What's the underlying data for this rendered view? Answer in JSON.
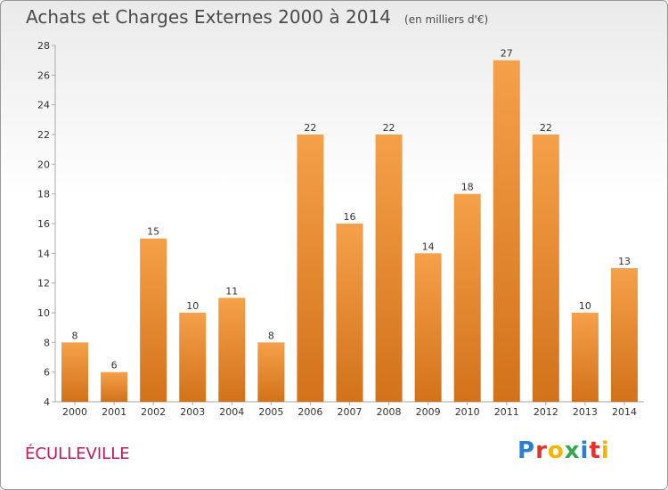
{
  "header": {
    "title": "Achats et Charges Externes 2000 à 2014",
    "subtitle": "(en milliers d'€)"
  },
  "footer": {
    "commune": "ÉCULLEVILLE",
    "logo_text": "Proxiti"
  },
  "colors": {
    "bar_top": "#f5a04a",
    "bar_bottom": "#d2721a",
    "title": "#4a4a4a",
    "commune": "#c2185b"
  },
  "chart_data": {
    "type": "bar",
    "categories": [
      "2000",
      "2001",
      "2002",
      "2003",
      "2004",
      "2005",
      "2006",
      "2007",
      "2008",
      "2009",
      "2010",
      "2011",
      "2012",
      "2013",
      "2014"
    ],
    "values": [
      8,
      6,
      15,
      10,
      11,
      8,
      22,
      16,
      22,
      14,
      18,
      27,
      22,
      10,
      13
    ],
    "title": "Achats et Charges Externes 2000 à 2014",
    "ylim": [
      4,
      28
    ],
    "yticks": [
      4,
      6,
      8,
      10,
      12,
      14,
      16,
      18,
      20,
      22,
      24,
      26,
      28
    ],
    "grid": false,
    "data_labels": true
  }
}
